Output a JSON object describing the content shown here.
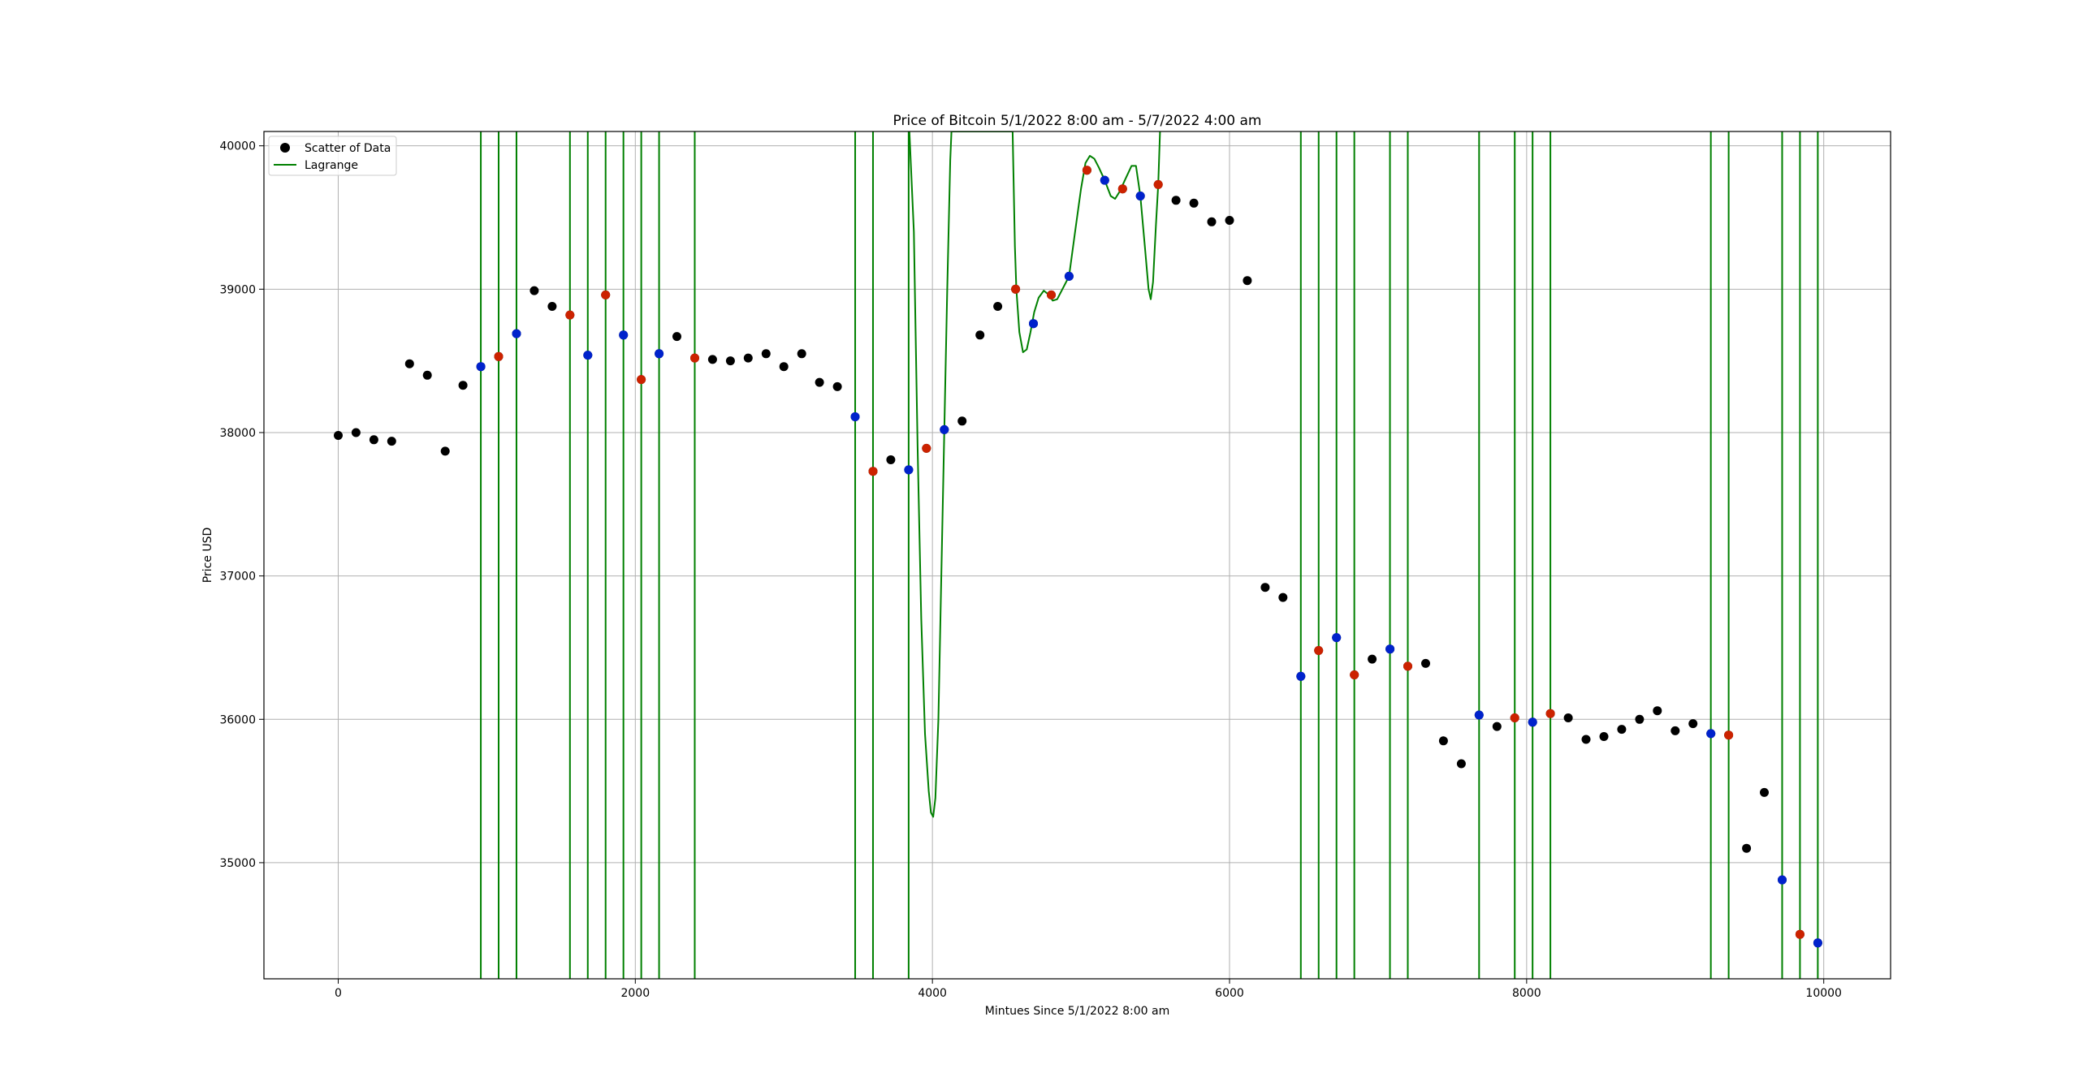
{
  "chart_data": {
    "type": "scatter",
    "title": "Price of Bitcoin 5/1/2022 8:00 am - 5/7/2022 4:00 am",
    "xlabel": "Mintues Since 5/1/2022 8:00 am",
    "ylabel": "Price USD",
    "xlim": [
      -500,
      10450
    ],
    "ylim": [
      34190,
      40100
    ],
    "xticks": [
      0,
      2000,
      4000,
      6000,
      8000,
      10000
    ],
    "yticks": [
      35000,
      36000,
      37000,
      38000,
      39000,
      40000
    ],
    "grid": true,
    "legend_position": "top-left",
    "legend": [
      {
        "label": "Scatter of Data",
        "marker": "dot",
        "color": "#000000"
      },
      {
        "label": "Lagrange",
        "marker": "line",
        "color": "#008000"
      }
    ],
    "colors": {
      "data": "#000000",
      "red_nodes": "#cc2200",
      "blue_nodes": "#0022cc",
      "lagrange": "#008000",
      "grid": "#b0b0b0"
    },
    "series": [
      {
        "name": "Scatter of Data",
        "points": [
          [
            0,
            37980
          ],
          [
            120,
            38000
          ],
          [
            240,
            37950
          ],
          [
            360,
            37940
          ],
          [
            480,
            38480
          ],
          [
            600,
            38400
          ],
          [
            720,
            37870
          ],
          [
            840,
            38330
          ],
          [
            960,
            38460
          ],
          [
            1080,
            38530
          ],
          [
            1200,
            38690
          ],
          [
            1320,
            38990
          ],
          [
            1440,
            38880
          ],
          [
            1560,
            38820
          ],
          [
            1680,
            38540
          ],
          [
            1800,
            38960
          ],
          [
            1920,
            38680
          ],
          [
            2040,
            38370
          ],
          [
            2160,
            38550
          ],
          [
            2280,
            38670
          ],
          [
            2400,
            38520
          ],
          [
            2520,
            38510
          ],
          [
            2640,
            38500
          ],
          [
            2760,
            38520
          ],
          [
            2880,
            38550
          ],
          [
            3000,
            38460
          ],
          [
            3120,
            38550
          ],
          [
            3240,
            38350
          ],
          [
            3360,
            38320
          ],
          [
            3480,
            38110
          ],
          [
            3600,
            37730
          ],
          [
            3720,
            37810
          ],
          [
            3840,
            37740
          ],
          [
            3960,
            37890
          ],
          [
            4080,
            38020
          ],
          [
            4200,
            38080
          ],
          [
            4320,
            38680
          ],
          [
            4440,
            38880
          ],
          [
            4560,
            39000
          ],
          [
            4680,
            38760
          ],
          [
            4800,
            38960
          ],
          [
            4920,
            39090
          ],
          [
            5040,
            39830
          ],
          [
            5160,
            39760
          ],
          [
            5280,
            39700
          ],
          [
            5400,
            39650
          ],
          [
            5520,
            39730
          ],
          [
            5640,
            39620
          ],
          [
            5760,
            39600
          ],
          [
            5880,
            39470
          ],
          [
            6000,
            39480
          ],
          [
            6120,
            39060
          ],
          [
            6240,
            36920
          ],
          [
            6360,
            36850
          ],
          [
            6480,
            36300
          ],
          [
            6600,
            36480
          ],
          [
            6720,
            36570
          ],
          [
            6840,
            36310
          ],
          [
            6960,
            36420
          ],
          [
            7080,
            36490
          ],
          [
            7200,
            36370
          ],
          [
            7320,
            36390
          ],
          [
            7440,
            35850
          ],
          [
            7560,
            35690
          ],
          [
            7680,
            36030
          ],
          [
            7800,
            35950
          ],
          [
            7920,
            36010
          ],
          [
            8040,
            35980
          ],
          [
            8160,
            36040
          ],
          [
            8280,
            36010
          ],
          [
            8400,
            35860
          ],
          [
            8520,
            35880
          ],
          [
            8640,
            35930
          ],
          [
            8760,
            36000
          ],
          [
            8880,
            36060
          ],
          [
            9000,
            35920
          ],
          [
            9120,
            35970
          ],
          [
            9240,
            35900
          ],
          [
            9360,
            35890
          ],
          [
            9480,
            35100
          ],
          [
            9600,
            35490
          ],
          [
            9720,
            34880
          ],
          [
            9840,
            34500
          ],
          [
            9960,
            34440
          ]
        ]
      },
      {
        "name": "red nodes",
        "points": [
          [
            1080,
            38530
          ],
          [
            1560,
            38820
          ],
          [
            1800,
            38960
          ],
          [
            2040,
            38370
          ],
          [
            2400,
            38520
          ],
          [
            3600,
            37730
          ],
          [
            3960,
            37890
          ],
          [
            4560,
            39000
          ],
          [
            4800,
            38960
          ],
          [
            5040,
            39830
          ],
          [
            5280,
            39700
          ],
          [
            5520,
            39730
          ],
          [
            6600,
            36480
          ],
          [
            6840,
            36310
          ],
          [
            7200,
            36370
          ],
          [
            7920,
            36010
          ],
          [
            8160,
            36040
          ],
          [
            9360,
            35890
          ],
          [
            9840,
            34500
          ]
        ]
      },
      {
        "name": "blue nodes",
        "points": [
          [
            960,
            38460
          ],
          [
            1200,
            38690
          ],
          [
            1680,
            38540
          ],
          [
            1920,
            38680
          ],
          [
            2160,
            38550
          ],
          [
            3480,
            38110
          ],
          [
            3840,
            37740
          ],
          [
            4080,
            38020
          ],
          [
            4680,
            38760
          ],
          [
            4920,
            39090
          ],
          [
            5160,
            39760
          ],
          [
            5400,
            39650
          ],
          [
            6480,
            36300
          ],
          [
            6720,
            36570
          ],
          [
            7080,
            36490
          ],
          [
            7680,
            36030
          ],
          [
            8040,
            35980
          ],
          [
            9240,
            35900
          ],
          [
            9720,
            34880
          ],
          [
            9960,
            34440
          ]
        ]
      },
      {
        "name": "Lagrange",
        "vertical_x": [
          960,
          1080,
          1200,
          1560,
          1680,
          1800,
          1920,
          2040,
          2160,
          2400,
          3480,
          3600,
          3840,
          6480,
          6600,
          6720,
          6840,
          7080,
          7200,
          7680,
          7920,
          8040,
          8160,
          9240,
          9360,
          9720,
          9840,
          9960
        ],
        "curve": [
          [
            3845,
            40100
          ],
          [
            3875,
            39400
          ],
          [
            3900,
            37900
          ],
          [
            3925,
            36700
          ],
          [
            3950,
            35900
          ],
          [
            3975,
            35500
          ],
          [
            3990,
            35350
          ],
          [
            4005,
            35320
          ],
          [
            4020,
            35450
          ],
          [
            4040,
            36000
          ],
          [
            4060,
            37000
          ],
          [
            4080,
            38020
          ],
          [
            4100,
            39000
          ],
          [
            4120,
            39900
          ],
          [
            4128,
            40100
          ],
          [
            4540,
            40100
          ],
          [
            4555,
            39300
          ],
          [
            4565,
            39000
          ],
          [
            4585,
            38700
          ],
          [
            4610,
            38560
          ],
          [
            4635,
            38580
          ],
          [
            4660,
            38700
          ],
          [
            4685,
            38840
          ],
          [
            4715,
            38940
          ],
          [
            4750,
            38990
          ],
          [
            4785,
            38960
          ],
          [
            4810,
            38920
          ],
          [
            4840,
            38930
          ],
          [
            4870,
            38990
          ],
          [
            4920,
            39090
          ],
          [
            4960,
            39400
          ],
          [
            5000,
            39700
          ],
          [
            5030,
            39880
          ],
          [
            5060,
            39930
          ],
          [
            5090,
            39910
          ],
          [
            5120,
            39850
          ],
          [
            5160,
            39760
          ],
          [
            5200,
            39650
          ],
          [
            5230,
            39630
          ],
          [
            5260,
            39680
          ],
          [
            5300,
            39770
          ],
          [
            5340,
            39860
          ],
          [
            5370,
            39860
          ],
          [
            5400,
            39650
          ],
          [
            5430,
            39300
          ],
          [
            5455,
            39000
          ],
          [
            5470,
            38930
          ],
          [
            5485,
            39050
          ],
          [
            5505,
            39450
          ],
          [
            5520,
            39730
          ],
          [
            5532,
            40100
          ]
        ]
      }
    ]
  }
}
